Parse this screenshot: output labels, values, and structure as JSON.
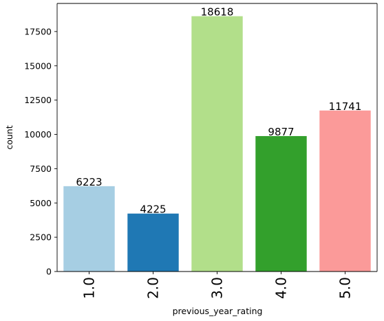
{
  "chart_data": {
    "type": "bar",
    "title": "",
    "xlabel": "previous_year_rating",
    "ylabel": "count",
    "categories": [
      "1.0",
      "2.0",
      "3.0",
      "4.0",
      "5.0"
    ],
    "values": [
      6223,
      4225,
      18618,
      9877,
      11741
    ],
    "data_labels": [
      "6223",
      "4225",
      "18618",
      "9877",
      "11741"
    ],
    "colors": [
      "#a6cee3",
      "#1f78b4",
      "#b2df8a",
      "#33a02c",
      "#fb9a99"
    ],
    "ylim": [
      0,
      19549
    ],
    "yticks": [
      0,
      2500,
      5000,
      7500,
      10000,
      12500,
      15000,
      17500
    ],
    "ytick_labels": [
      "0",
      "2500",
      "5000",
      "7500",
      "10000",
      "12500",
      "15000",
      "17500"
    ],
    "grid": false,
    "legend": "none"
  }
}
